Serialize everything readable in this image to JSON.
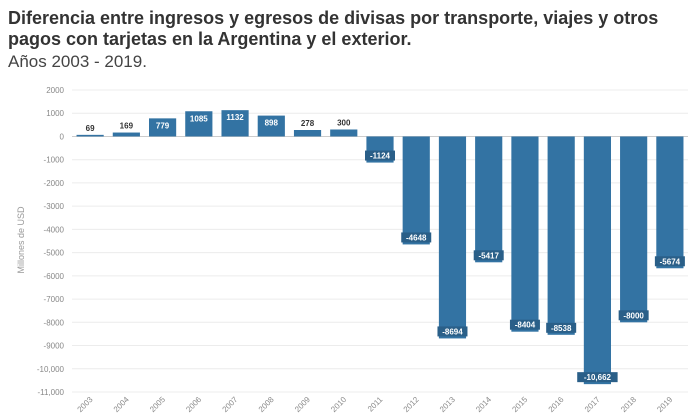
{
  "title": "Diferencia entre ingresos y egresos de divisas por transporte, viajes y otros pagos con tarjetas en la Argentina y el exterior.",
  "subtitle": "Años 2003 - 2019.",
  "chart_data": {
    "type": "bar",
    "ylabel": "Millones de USD",
    "ylim": [
      -11000,
      2000
    ],
    "yticks": [
      2000,
      1000,
      0,
      -1000,
      -2000,
      -3000,
      -4000,
      -5000,
      -6000,
      -7000,
      -8000,
      -9000,
      -10000,
      -11000
    ],
    "ytick_labels": [
      "2000",
      "1000",
      "0",
      "-1000",
      "-2000",
      "-3000",
      "-4000",
      "-5000",
      "-6000",
      "-7000",
      "-8000",
      "-9000",
      "-10,000",
      "-11,000"
    ],
    "categories": [
      "2003",
      "2004",
      "2005",
      "2006",
      "2007",
      "2008",
      "2009",
      "2010",
      "2011",
      "2012",
      "2013",
      "2014",
      "2015",
      "2016",
      "2017",
      "2018",
      "2019"
    ],
    "values": [
      69,
      169,
      779,
      1085,
      1132,
      898,
      278,
      300,
      -1124,
      -4648,
      -8694,
      -5417,
      -8404,
      -8538,
      -10662,
      -8000,
      -5674
    ],
    "value_labels": [
      "69",
      "169",
      "779",
      "1085",
      "1132",
      "898",
      "278",
      "300",
      "-1124",
      "-4648",
      "-8694",
      "-5417",
      "-8404",
      "-8538",
      "-10,662",
      "-8000",
      "-5674"
    ],
    "bar_color": "#3373a3",
    "grid": true,
    "legend": "none"
  }
}
